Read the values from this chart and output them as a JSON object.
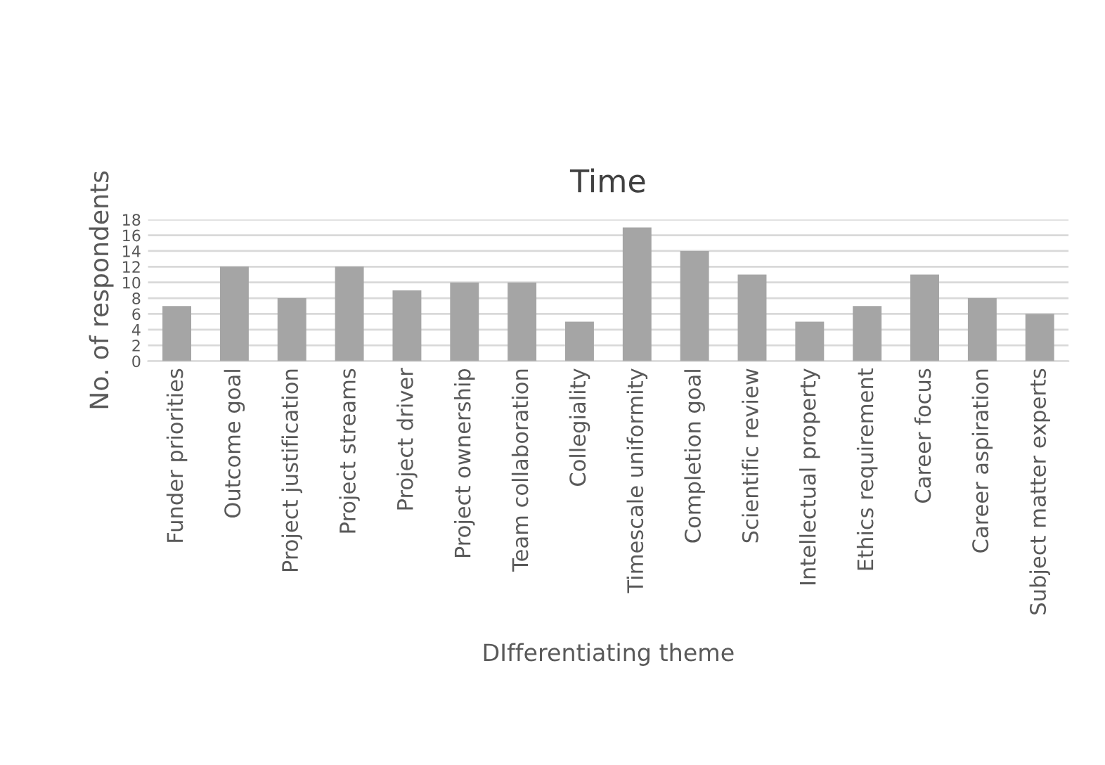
{
  "chart_data": {
    "type": "bar",
    "title": "Time",
    "xlabel": "DIfferentiating theme",
    "ylabel": "No. of respondents",
    "categories": [
      "Funder priorities",
      "Outcome goal",
      "Project justification",
      "Project streams",
      "Project driver",
      "Project ownership",
      "Team collaboration",
      "Collegiality",
      "Timescale uniformity",
      "Completion goal",
      "Scientific review",
      "Intellectual property",
      "Ethics requirement",
      "Career focus",
      "Career aspiration",
      "Subject matter experts"
    ],
    "values": [
      7,
      12,
      8,
      12,
      9,
      10,
      10,
      5,
      17,
      14,
      11,
      5,
      7,
      11,
      8,
      6
    ],
    "color": "#a5a5a5",
    "ylim": [
      0,
      18
    ],
    "yticks": [
      0,
      2,
      4,
      6,
      8,
      10,
      12,
      14,
      16,
      18
    ],
    "grid": "y",
    "legend": false
  }
}
